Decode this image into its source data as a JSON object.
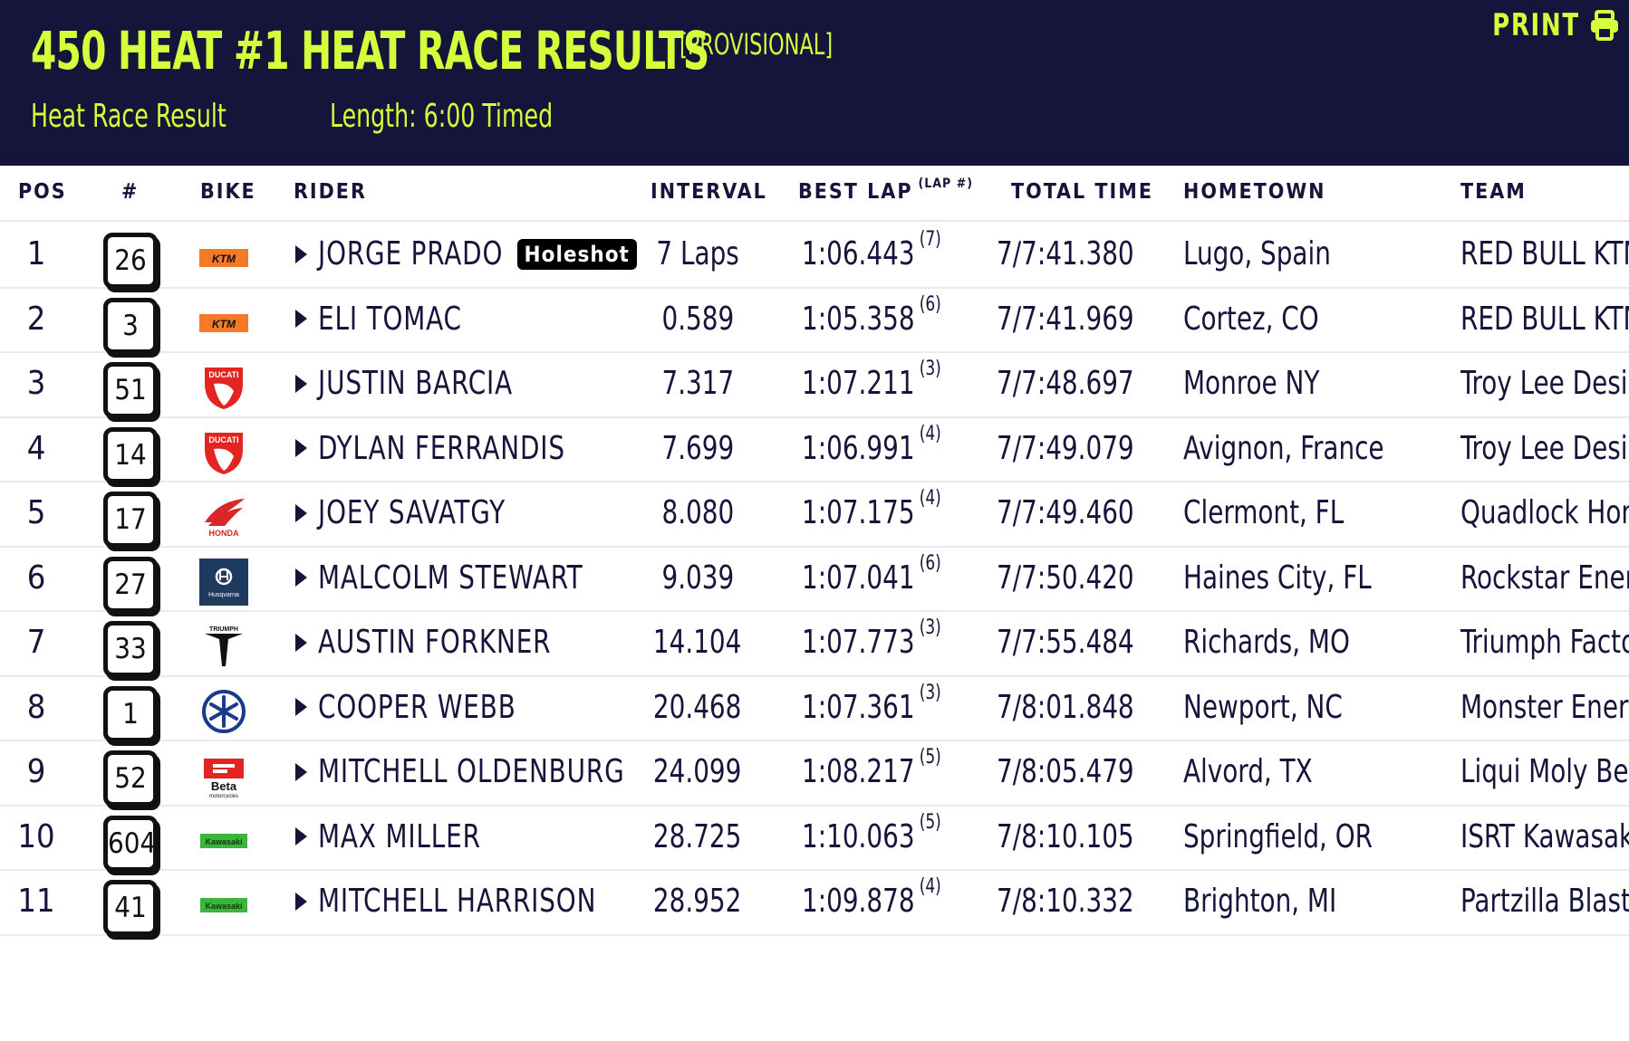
{
  "header": {
    "title": "450 HEAT #1 HEAT RACE RESULTS",
    "status": "[PROVISIONAL]",
    "print_label": "PRINT",
    "subtitle_type": "Heat Race Result",
    "subtitle_length": "Length: 6:00 Timed"
  },
  "columns": {
    "pos": "POS",
    "num": "#",
    "bike": "BIKE",
    "rider": "RIDER",
    "interval": "INTERVAL",
    "best_lap": "BEST LAP",
    "best_lap_sub": "(LAP #)",
    "total_time": "TOTAL TIME",
    "hometown": "HOMETOWN",
    "team": "TEAM"
  },
  "rows": [
    {
      "pos": "1",
      "num": "26",
      "bike": "ktm",
      "rider": "JORGE PRADO",
      "badge": "Holeshot",
      "interval": "7 Laps",
      "best_lap": "1:06.443",
      "lap_no": "(7)",
      "total": "7/7:41.380",
      "hometown": "Lugo, Spain",
      "team": "RED BULL KTM"
    },
    {
      "pos": "2",
      "num": "3",
      "bike": "ktm",
      "rider": "ELI TOMAC",
      "interval": "0.589",
      "best_lap": "1:05.358",
      "lap_no": "(6)",
      "total": "7/7:41.969",
      "hometown": "Cortez, CO",
      "team": "RED BULL KTM"
    },
    {
      "pos": "3",
      "num": "51",
      "bike": "ducati",
      "rider": "JUSTIN BARCIA",
      "interval": "7.317",
      "best_lap": "1:07.211",
      "lap_no": "(3)",
      "total": "7/7:48.697",
      "hometown": "Monroe NY",
      "team": "Troy Lee Desi"
    },
    {
      "pos": "4",
      "num": "14",
      "bike": "ducati",
      "rider": "DYLAN FERRANDIS",
      "interval": "7.699",
      "best_lap": "1:06.991",
      "lap_no": "(4)",
      "total": "7/7:49.079",
      "hometown": "Avignon, France",
      "team": "Troy Lee Desi"
    },
    {
      "pos": "5",
      "num": "17",
      "bike": "honda",
      "rider": "JOEY SAVATGY",
      "interval": "8.080",
      "best_lap": "1:07.175",
      "lap_no": "(4)",
      "total": "7/7:49.460",
      "hometown": "Clermont, FL",
      "team": "Quadlock Hon"
    },
    {
      "pos": "6",
      "num": "27",
      "bike": "husqvarna",
      "rider": "MALCOLM STEWART",
      "interval": "9.039",
      "best_lap": "1:07.041",
      "lap_no": "(6)",
      "total": "7/7:50.420",
      "hometown": "Haines City, FL",
      "team": "Rockstar Ener"
    },
    {
      "pos": "7",
      "num": "33",
      "bike": "triumph",
      "rider": "AUSTIN FORKNER",
      "interval": "14.104",
      "best_lap": "1:07.773",
      "lap_no": "(3)",
      "total": "7/7:55.484",
      "hometown": "Richards, MO",
      "team": "Triumph Facto"
    },
    {
      "pos": "8",
      "num": "1",
      "bike": "yamaha",
      "rider": "COOPER WEBB",
      "interval": "20.468",
      "best_lap": "1:07.361",
      "lap_no": "(3)",
      "total": "7/8:01.848",
      "hometown": "Newport, NC",
      "team": "Monster Ener"
    },
    {
      "pos": "9",
      "num": "52",
      "bike": "beta",
      "rider": "MITCHELL OLDENBURG",
      "interval": "24.099",
      "best_lap": "1:08.217",
      "lap_no": "(5)",
      "total": "7/8:05.479",
      "hometown": "Alvord, TX",
      "team": "Liqui Moly Be"
    },
    {
      "pos": "10",
      "num": "604",
      "bike": "kawasaki",
      "rider": "MAX MILLER",
      "interval": "28.725",
      "best_lap": "1:10.063",
      "lap_no": "(5)",
      "total": "7/8:10.105",
      "hometown": "Springfield, OR",
      "team": "ISRT Kawasaki"
    },
    {
      "pos": "11",
      "num": "41",
      "bike": "kawasaki",
      "rider": "MITCHELL HARRISON",
      "interval": "28.952",
      "best_lap": "1:09.878",
      "lap_no": "(4)",
      "total": "7/8:10.332",
      "hometown": "Brighton, MI",
      "team": "Partzilla Blast"
    }
  ],
  "bike_logos": {
    "ktm": "KTM",
    "ducati": "DUCATI",
    "honda": "HONDA",
    "husqvarna": "Husqvarna",
    "triumph": "TRIUMPH",
    "beta": "Beta",
    "kawasaki": "Kawasaki"
  },
  "colors": {
    "header_bg": "#15143a",
    "accent": "#d4ff3b",
    "text": "#15143a"
  }
}
